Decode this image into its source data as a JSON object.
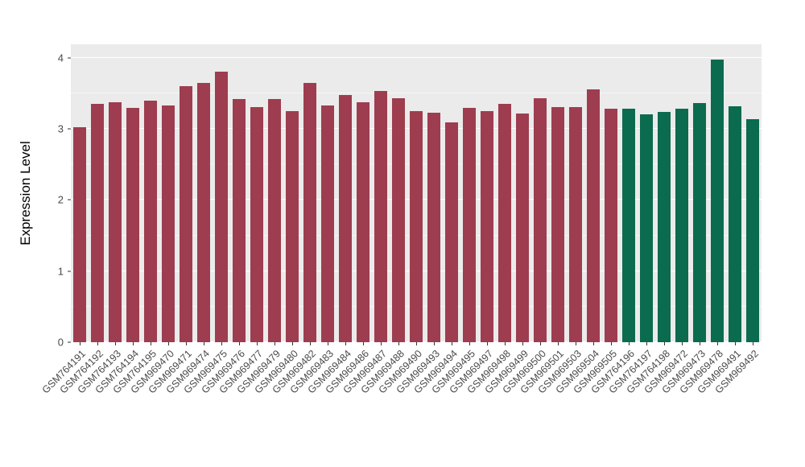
{
  "chart_data": {
    "type": "bar",
    "title": "",
    "xlabel": "",
    "ylabel": "Expression Level",
    "ylim": [
      0,
      4.19
    ],
    "yticks": [
      0,
      1,
      2,
      3,
      4
    ],
    "grid": "major-minor",
    "legend": "none",
    "panel_background": "#EBEBEB",
    "gridline_color": "#FFFFFF",
    "colors": {
      "group1": "#9E3D4F",
      "group2": "#0B6B4E"
    },
    "bars": [
      {
        "label": "GSM764191",
        "value": 3.02,
        "group": "group1"
      },
      {
        "label": "GSM764192",
        "value": 3.35,
        "group": "group1"
      },
      {
        "label": "GSM764193",
        "value": 3.38,
        "group": "group1"
      },
      {
        "label": "GSM764194",
        "value": 3.3,
        "group": "group1"
      },
      {
        "label": "GSM764195",
        "value": 3.4,
        "group": "group1"
      },
      {
        "label": "GSM969470",
        "value": 3.33,
        "group": "group1"
      },
      {
        "label": "GSM969471",
        "value": 3.6,
        "group": "group1"
      },
      {
        "label": "GSM969474",
        "value": 3.65,
        "group": "group1"
      },
      {
        "label": "GSM969475",
        "value": 3.8,
        "group": "group1"
      },
      {
        "label": "GSM969476",
        "value": 3.42,
        "group": "group1"
      },
      {
        "label": "GSM969477",
        "value": 3.31,
        "group": "group1"
      },
      {
        "label": "GSM969479",
        "value": 3.42,
        "group": "group1"
      },
      {
        "label": "GSM969480",
        "value": 3.25,
        "group": "group1"
      },
      {
        "label": "GSM969482",
        "value": 3.65,
        "group": "group1"
      },
      {
        "label": "GSM969483",
        "value": 3.33,
        "group": "group1"
      },
      {
        "label": "GSM969484",
        "value": 3.48,
        "group": "group1"
      },
      {
        "label": "GSM969486",
        "value": 3.37,
        "group": "group1"
      },
      {
        "label": "GSM969487",
        "value": 3.53,
        "group": "group1"
      },
      {
        "label": "GSM969488",
        "value": 3.43,
        "group": "group1"
      },
      {
        "label": "GSM969490",
        "value": 3.25,
        "group": "group1"
      },
      {
        "label": "GSM969493",
        "value": 3.23,
        "group": "group1"
      },
      {
        "label": "GSM969494",
        "value": 3.09,
        "group": "group1"
      },
      {
        "label": "GSM969495",
        "value": 3.3,
        "group": "group1"
      },
      {
        "label": "GSM969497",
        "value": 3.25,
        "group": "group1"
      },
      {
        "label": "GSM969498",
        "value": 3.35,
        "group": "group1"
      },
      {
        "label": "GSM969499",
        "value": 3.22,
        "group": "group1"
      },
      {
        "label": "GSM969500",
        "value": 3.43,
        "group": "group1"
      },
      {
        "label": "GSM969501",
        "value": 3.31,
        "group": "group1"
      },
      {
        "label": "GSM969503",
        "value": 3.31,
        "group": "group1"
      },
      {
        "label": "GSM969504",
        "value": 3.56,
        "group": "group1"
      },
      {
        "label": "GSM969505",
        "value": 3.28,
        "group": "group1"
      },
      {
        "label": "GSM764196",
        "value": 3.28,
        "group": "group2"
      },
      {
        "label": "GSM764197",
        "value": 3.2,
        "group": "group2"
      },
      {
        "label": "GSM764198",
        "value": 3.24,
        "group": "group2"
      },
      {
        "label": "GSM969472",
        "value": 3.28,
        "group": "group2"
      },
      {
        "label": "GSM969473",
        "value": 3.36,
        "group": "group2"
      },
      {
        "label": "GSM969478",
        "value": 3.98,
        "group": "group2"
      },
      {
        "label": "GSM969491",
        "value": 3.32,
        "group": "group2"
      },
      {
        "label": "GSM969492",
        "value": 3.14,
        "group": "group2"
      }
    ]
  }
}
